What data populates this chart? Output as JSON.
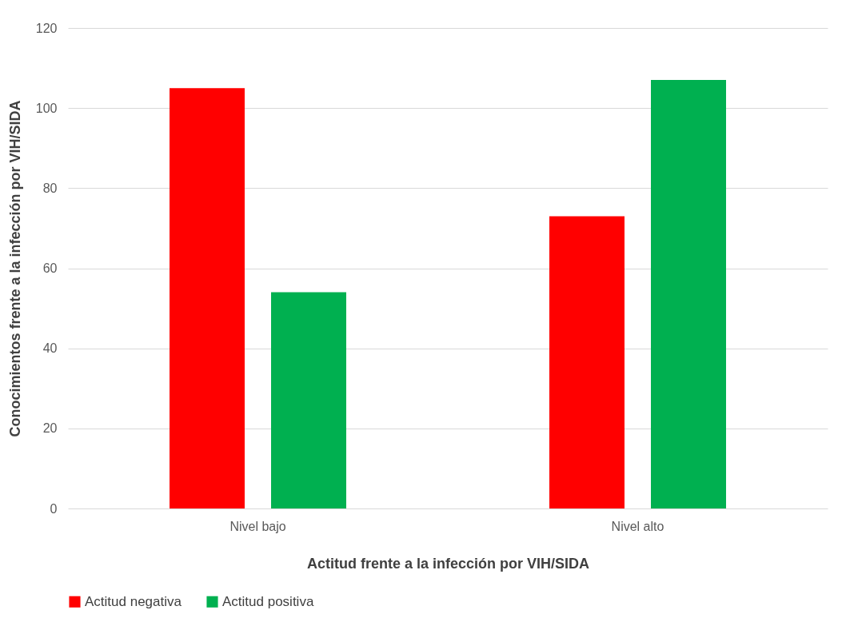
{
  "chart_data": {
    "type": "bar",
    "xlabel": "Actitud frente a la infección por VIH/SIDA",
    "ylabel": "Conocimientos frente a la infección por VIH/SIDA",
    "categories": [
      "Nivel bajo",
      "Nivel alto"
    ],
    "series": [
      {
        "name": "Actitud negativa",
        "color": "#ff0000",
        "values": [
          105,
          73
        ]
      },
      {
        "name": "Actitud positiva",
        "color": "#00b050",
        "values": [
          54,
          107
        ]
      }
    ],
    "ylim": [
      0,
      120
    ],
    "yticks": [
      0,
      20,
      40,
      60,
      80,
      100,
      120
    ],
    "grid": "y",
    "legend": "bottom"
  }
}
